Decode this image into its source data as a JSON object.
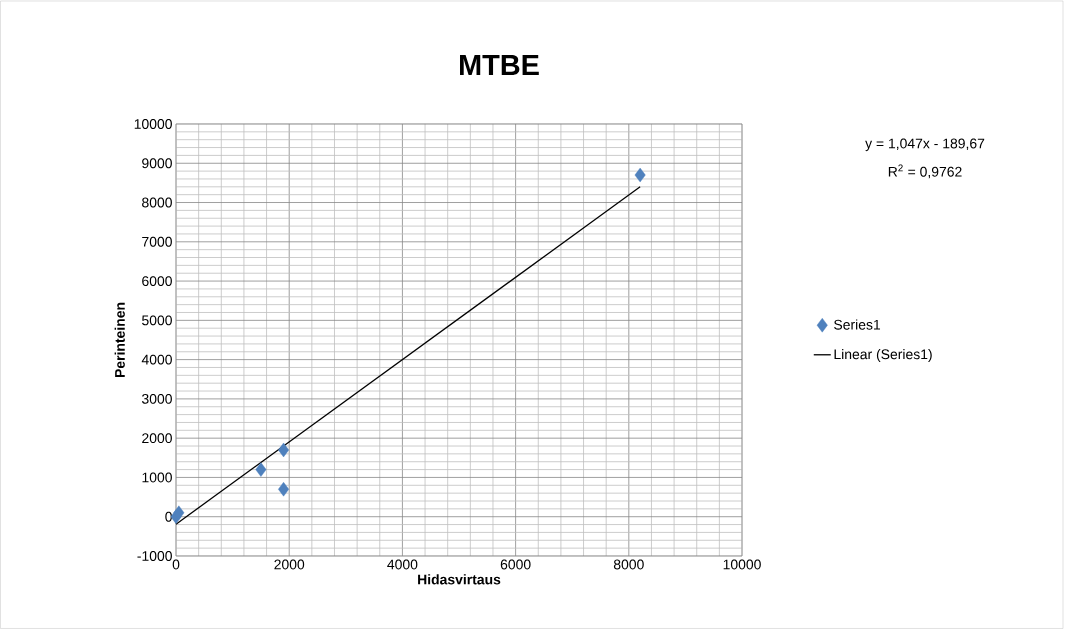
{
  "chart_data": {
    "type": "scatter",
    "title": "MTBE",
    "xlabel": "Hidasvirtaus",
    "ylabel": "Perinteinen",
    "xlim": [
      0,
      10000
    ],
    "xticks": [
      0,
      2000,
      4000,
      6000,
      8000,
      10000
    ],
    "ylim": [
      -1000,
      10000
    ],
    "yticks": [
      -1000,
      0,
      1000,
      2000,
      3000,
      4000,
      5000,
      6000,
      7000,
      8000,
      9000,
      10000
    ],
    "grid": true,
    "legend": "right",
    "marker": "diamond",
    "series": [
      {
        "name": "Series1",
        "color": "#4f81bd",
        "x": [
          0,
          50,
          1500,
          1900,
          1900,
          8200
        ],
        "values": [
          0,
          100,
          1200,
          1700,
          700,
          8700
        ]
      },
      {
        "name": "Linear (Series1)",
        "type": "line",
        "color": "#000000",
        "marker": "none",
        "line_style": "solid",
        "x": [
          0,
          8200
        ],
        "values": [
          -190,
          8400
        ]
      }
    ],
    "annotations": [
      "y = 1,047x - 189,67",
      "R$^{2}$ = 0,9762"
    ]
  }
}
